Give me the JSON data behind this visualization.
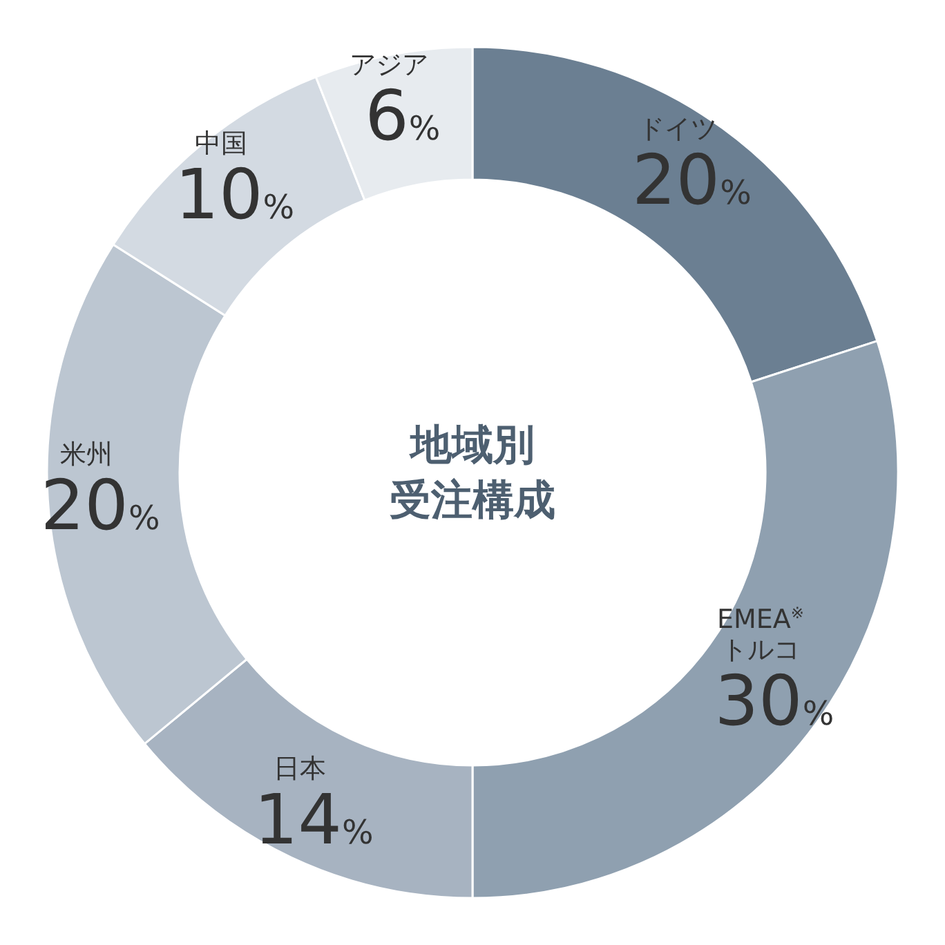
{
  "chart_data": {
    "type": "donut",
    "title": "地域別",
    "subtitle": "受注構成",
    "categories": [
      "ドイツ",
      "EMEA$^{※}$\nトルコ",
      "日本",
      "米州",
      "中国",
      "アジア"
    ],
    "values": [
      20,
      30,
      14,
      20,
      10,
      6
    ],
    "value_labels": [
      "20%",
      "30%",
      "14%",
      "20%",
      "10%",
      "6%"
    ],
    "colors": [
      "#6b7f92",
      "#8fa0b0",
      "#a7b3c1",
      "#bcc6d1",
      "#d3dae2",
      "#e7ebef"
    ]
  }
}
